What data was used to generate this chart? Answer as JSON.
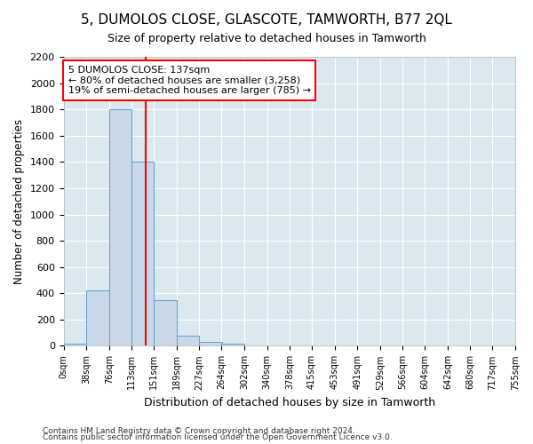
{
  "title": "5, DUMOLOS CLOSE, GLASCOTE, TAMWORTH, B77 2QL",
  "subtitle": "Size of property relative to detached houses in Tamworth",
  "xlabel": "Distribution of detached houses by size in Tamworth",
  "ylabel": "Number of detached properties",
  "bar_color": "#c8d8e8",
  "bar_edge_color": "#5a9fd4",
  "bg_color": "#dce8f0",
  "grid_color": "#ffffff",
  "red_line_x": 137,
  "annotation_title": "5 DUMOLOS CLOSE: 137sqm",
  "annotation_line1": "← 80% of detached houses are smaller (3,258)",
  "annotation_line2": "19% of semi-detached houses are larger (785) →",
  "bin_edges": [
    0,
    38,
    76,
    113,
    151,
    189,
    227,
    264,
    302,
    340,
    378,
    415,
    453,
    491,
    529,
    566,
    604,
    642,
    680,
    717,
    755
  ],
  "bar_heights": [
    15,
    420,
    1800,
    1400,
    350,
    75,
    30,
    15,
    0,
    0,
    0,
    0,
    0,
    0,
    0,
    0,
    0,
    0,
    0,
    0
  ],
  "ylim": [
    0,
    2200
  ],
  "yticks": [
    0,
    200,
    400,
    600,
    800,
    1000,
    1200,
    1400,
    1600,
    1800,
    2000,
    2200
  ],
  "footer_line1": "Contains HM Land Registry data © Crown copyright and database right 2024.",
  "footer_line2": "Contains public sector information licensed under the Open Government Licence v3.0."
}
